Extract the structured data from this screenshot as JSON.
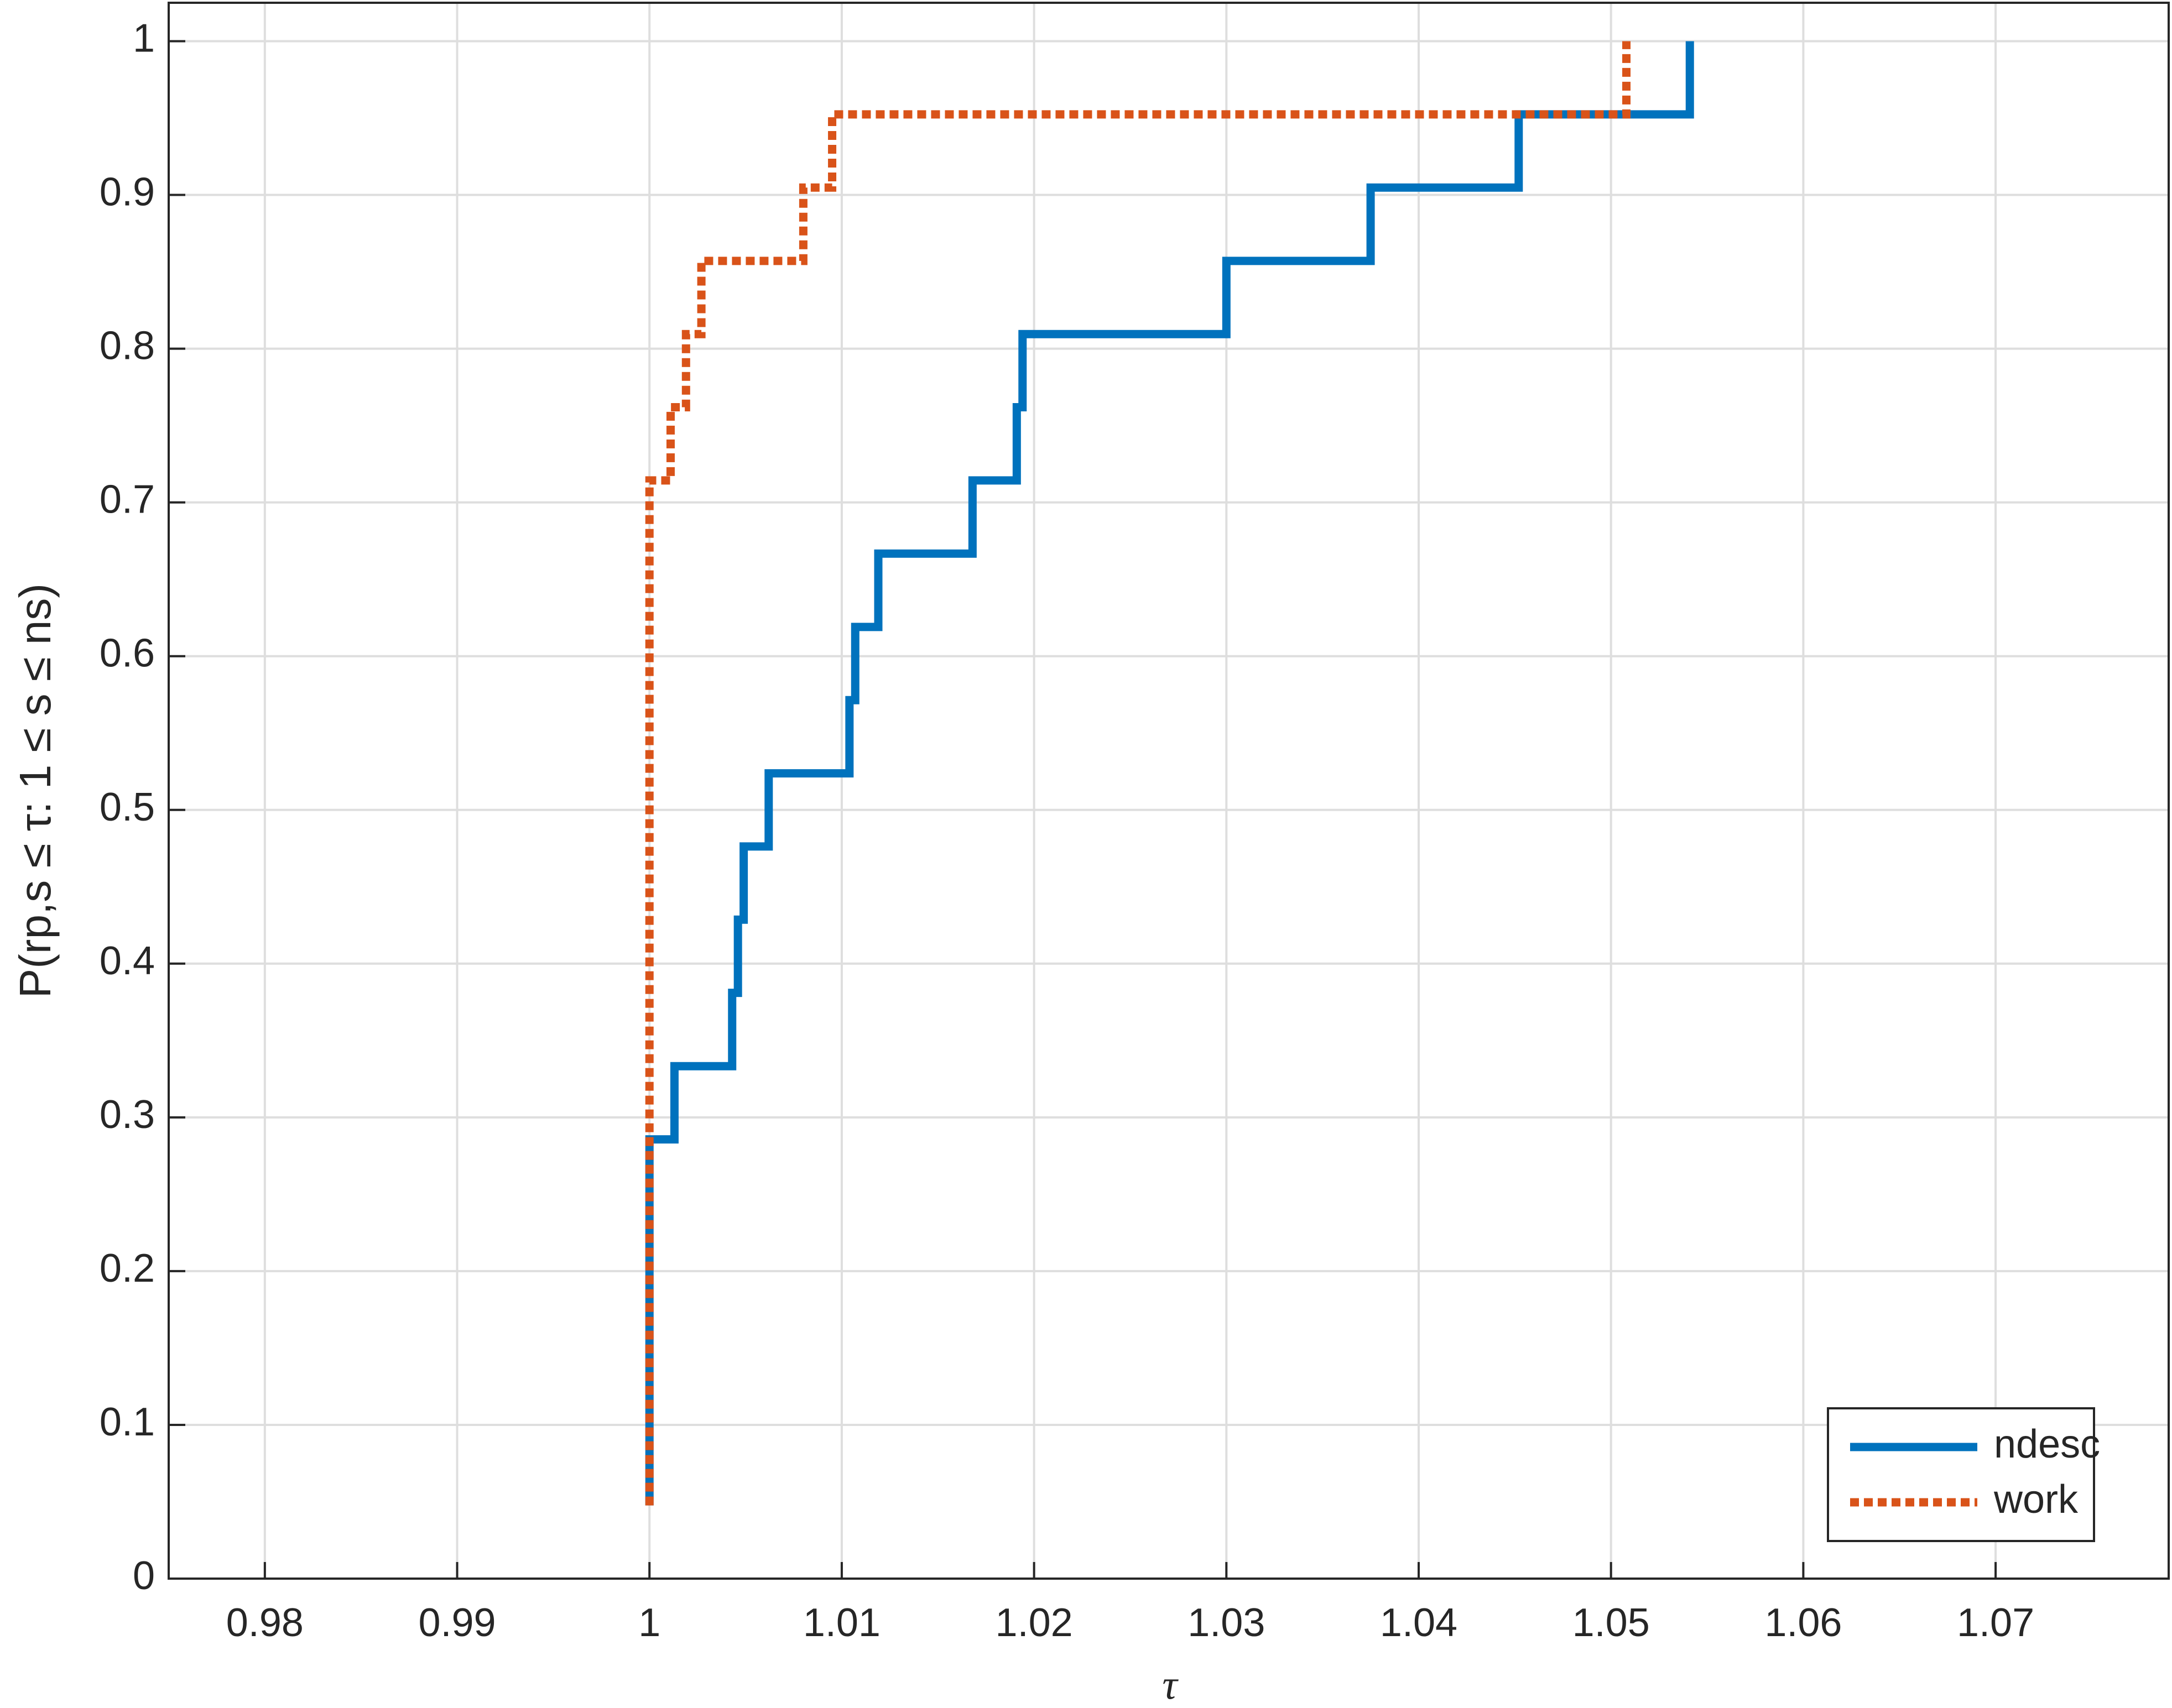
{
  "chart_data": {
    "type": "line",
    "xlabel": "τ",
    "ylabel": "P(rp,s ≤ τ: 1 ≤ s ≤ ns)",
    "xlim": [
      0.975,
      1.079
    ],
    "ylim": [
      0,
      1.025
    ],
    "xticks": [
      0.98,
      0.99,
      1,
      1.01,
      1.02,
      1.03,
      1.04,
      1.05,
      1.06,
      1.07
    ],
    "yticks": [
      0,
      0.1,
      0.2,
      0.3,
      0.4,
      0.5,
      0.6,
      0.7,
      0.8,
      0.9,
      1
    ],
    "grid": true,
    "legend": "lower right",
    "series": [
      {
        "name": "ndesc",
        "color": "#0072bd",
        "style": "solid",
        "x": [
          1,
          1,
          1.0013,
          1.0013,
          1.0043,
          1.0043,
          1.0046,
          1.0046,
          1.0049,
          1.0049,
          1.0062,
          1.0062,
          1.0104,
          1.0104,
          1.0107,
          1.0107,
          1.0119,
          1.0119,
          1.0168,
          1.0168,
          1.0191,
          1.0191,
          1.0194,
          1.0194,
          1.03,
          1.03,
          1.0375,
          1.0375,
          1.0452,
          1.0452,
          1.0541,
          1.0541
        ],
        "values": [
          0.0476,
          0.2857,
          0.2857,
          0.3333,
          0.3333,
          0.381,
          0.381,
          0.4286,
          0.4286,
          0.4762,
          0.4762,
          0.5238,
          0.5238,
          0.5714,
          0.5714,
          0.619,
          0.619,
          0.6667,
          0.6667,
          0.7143,
          0.7143,
          0.7619,
          0.7619,
          0.8095,
          0.8095,
          0.8571,
          0.8571,
          0.9048,
          0.9048,
          0.9524,
          0.9524,
          1
        ]
      },
      {
        "name": "work",
        "color": "#d95319",
        "style": "dotted",
        "x": [
          1,
          1,
          1.0011,
          1.0011,
          1.0019,
          1.0019,
          1.0027,
          1.0027,
          1.008,
          1.008,
          1.0095,
          1.0095,
          1.0508,
          1.0508
        ],
        "values": [
          0.0476,
          0.7143,
          0.7143,
          0.7619,
          0.7619,
          0.8095,
          0.8095,
          0.8571,
          0.8571,
          0.9048,
          0.9048,
          0.9524,
          0.9524,
          1
        ]
      }
    ]
  }
}
